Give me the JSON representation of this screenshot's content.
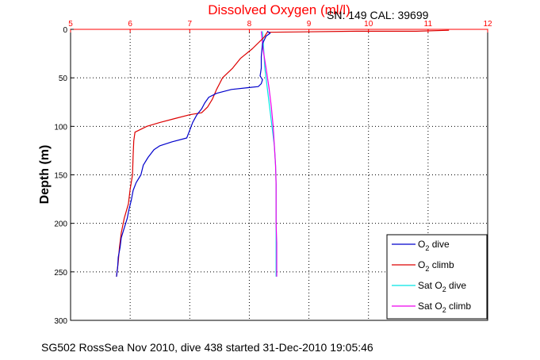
{
  "chart_data": {
    "type": "line",
    "title": "Dissolved Oxygen (ml/l)",
    "subtitle": "SN: 149  CAL: 39699",
    "ylabel": "Depth (m)",
    "footer": "SG502 RossSea Nov 2010, dive 438 started 31-Dec-2010 19:05:46",
    "xlim": [
      5,
      12
    ],
    "ylim": [
      0,
      300
    ],
    "y_reversed": true,
    "x_axis_position": "top",
    "x_ticks": [
      "5",
      "6",
      "7",
      "8",
      "9",
      "10",
      "11",
      "12"
    ],
    "y_ticks": [
      "0",
      "50",
      "100",
      "150",
      "200",
      "250",
      "300"
    ],
    "grid": true,
    "legend_position": "bottom-right",
    "series": [
      {
        "name": "O2 dive",
        "color": "#0000cc",
        "points": [
          [
            8.3,
            2
          ],
          [
            8.35,
            4
          ],
          [
            8.28,
            7
          ],
          [
            8.22,
            15
          ],
          [
            8.2,
            28
          ],
          [
            8.2,
            40
          ],
          [
            8.18,
            48
          ],
          [
            8.22,
            52
          ],
          [
            8.2,
            56
          ],
          [
            8.15,
            59
          ],
          [
            8.0,
            60
          ],
          [
            7.7,
            62
          ],
          [
            7.45,
            66
          ],
          [
            7.32,
            70
          ],
          [
            7.25,
            76
          ],
          [
            7.2,
            82
          ],
          [
            7.12,
            88
          ],
          [
            7.05,
            96
          ],
          [
            7.0,
            104
          ],
          [
            6.95,
            112
          ],
          [
            6.7,
            116
          ],
          [
            6.5,
            120
          ],
          [
            6.4,
            124
          ],
          [
            6.3,
            132
          ],
          [
            6.22,
            140
          ],
          [
            6.18,
            150
          ],
          [
            6.1,
            158
          ],
          [
            6.05,
            166
          ],
          [
            6.02,
            176
          ],
          [
            5.98,
            186
          ],
          [
            5.95,
            195
          ],
          [
            5.9,
            205
          ],
          [
            5.85,
            215
          ],
          [
            5.83,
            225
          ],
          [
            5.8,
            235
          ],
          [
            5.79,
            245
          ],
          [
            5.77,
            255
          ]
        ]
      },
      {
        "name": "O2 climb",
        "color": "#dd0000",
        "points": [
          [
            11.35,
            1
          ],
          [
            10.8,
            2
          ],
          [
            9.8,
            2
          ],
          [
            8.3,
            3
          ],
          [
            8.25,
            8
          ],
          [
            8.05,
            20
          ],
          [
            7.85,
            30
          ],
          [
            7.72,
            40
          ],
          [
            7.55,
            50
          ],
          [
            7.5,
            56
          ],
          [
            7.45,
            62
          ],
          [
            7.38,
            72
          ],
          [
            7.3,
            80
          ],
          [
            7.2,
            86
          ],
          [
            7.0,
            88
          ],
          [
            6.75,
            92
          ],
          [
            6.5,
            96
          ],
          [
            6.28,
            100
          ],
          [
            6.08,
            106
          ],
          [
            6.06,
            115
          ],
          [
            6.05,
            130
          ],
          [
            6.04,
            150
          ],
          [
            6.0,
            165
          ],
          [
            5.97,
            180
          ],
          [
            5.9,
            195
          ],
          [
            5.85,
            210
          ],
          [
            5.82,
            225
          ],
          [
            5.8,
            240
          ],
          [
            5.77,
            255
          ]
        ]
      },
      {
        "name": "Sat O2 dive",
        "color": "#00e5e5",
        "points": [
          [
            8.22,
            2
          ],
          [
            8.24,
            20
          ],
          [
            8.26,
            40
          ],
          [
            8.3,
            60
          ],
          [
            8.34,
            80
          ],
          [
            8.38,
            100
          ],
          [
            8.42,
            120
          ],
          [
            8.44,
            140
          ],
          [
            8.45,
            160
          ],
          [
            8.45,
            180
          ],
          [
            8.45,
            200
          ],
          [
            8.45,
            220
          ],
          [
            8.45,
            240
          ],
          [
            8.45,
            255
          ]
        ]
      },
      {
        "name": "Sat O2 climb",
        "color": "#ee00ee",
        "points": [
          [
            8.2,
            2
          ],
          [
            8.23,
            20
          ],
          [
            8.28,
            40
          ],
          [
            8.33,
            60
          ],
          [
            8.37,
            80
          ],
          [
            8.4,
            100
          ],
          [
            8.42,
            120
          ],
          [
            8.44,
            140
          ],
          [
            8.45,
            160
          ],
          [
            8.45,
            180
          ],
          [
            8.45,
            200
          ],
          [
            8.46,
            220
          ],
          [
            8.46,
            240
          ],
          [
            8.46,
            255
          ]
        ]
      }
    ]
  },
  "legend": {
    "entries": [
      {
        "label_main": "O",
        "label_sub": "2",
        "label_rest": " dive",
        "color": "#0000cc"
      },
      {
        "label_main": "O",
        "label_sub": "2",
        "label_rest": " climb",
        "color": "#dd0000"
      },
      {
        "label_main": "Sat O",
        "label_sub": "2",
        "label_rest": " dive",
        "color": "#00e5e5"
      },
      {
        "label_main": "Sat O",
        "label_sub": "2",
        "label_rest": " climb",
        "color": "#ee00ee"
      }
    ]
  },
  "colors": {
    "axis_top": "#ff0000",
    "axis": "#000000",
    "grid": "#000000"
  }
}
